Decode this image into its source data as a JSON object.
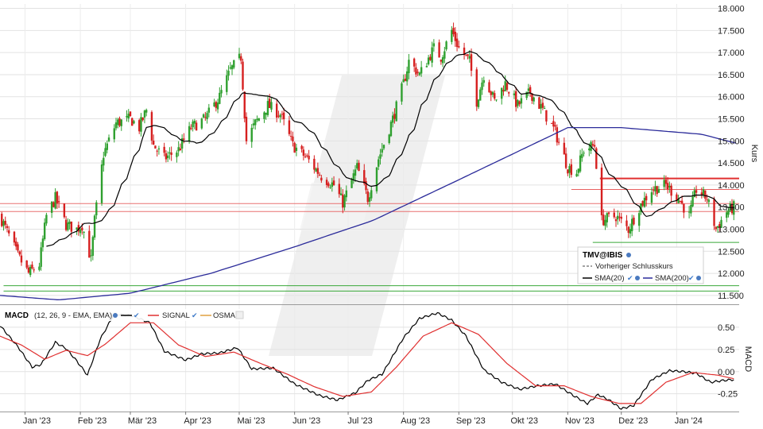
{
  "chart_data": [
    {
      "type": "candlestick",
      "instrument": "TMV@IBIS",
      "ylabel": "Kurs",
      "ylim": [
        11.3,
        18.1
      ],
      "y_ticks": [
        "18.000",
        "17.500",
        "17.000",
        "16.500",
        "16.000",
        "15.500",
        "15.000",
        "14.500",
        "14.000",
        "13.500",
        "13.000",
        "12.500",
        "12.000",
        "11.500"
      ],
      "y_tick_values": [
        18.0,
        17.5,
        17.0,
        16.5,
        16.0,
        15.5,
        15.0,
        14.5,
        14.0,
        13.5,
        13.0,
        12.5,
        12.0,
        11.5
      ],
      "x_ticks": [
        "Jan '23",
        "Feb '23",
        "Mär '23",
        "Apr '23",
        "Mai '23",
        "Jun '23",
        "Jul '23",
        "Aug '23",
        "Sep '23",
        "Okt '23",
        "Nov '23",
        "Dez '23",
        "Jan '24"
      ],
      "x_tick_dates": [
        "2023-01-01",
        "2023-02-01",
        "2023-03-01",
        "2023-04-01",
        "2023-05-01",
        "2023-06-01",
        "2023-07-01",
        "2023-08-01",
        "2023-09-01",
        "2023-10-01",
        "2023-11-01",
        "2023-12-01",
        "2024-01-01"
      ],
      "x_range": [
        "2022-12-18",
        "2024-02-05"
      ],
      "close_anchors": [
        [
          "2022-12-18",
          13.3
        ],
        [
          "2022-12-28",
          12.4
        ],
        [
          "2023-01-03",
          12.0
        ],
        [
          "2023-01-09",
          12.2
        ],
        [
          "2023-01-13",
          13.3
        ],
        [
          "2023-01-18",
          13.7
        ],
        [
          "2023-01-24",
          13.1
        ],
        [
          "2023-01-30",
          13.0
        ],
        [
          "2023-02-02",
          13.1
        ],
        [
          "2023-02-07",
          12.3
        ],
        [
          "2023-02-09",
          13.2
        ],
        [
          "2023-02-14",
          14.7
        ],
        [
          "2023-02-21",
          15.4
        ],
        [
          "2023-03-01",
          15.5
        ],
        [
          "2023-03-06",
          15.3
        ],
        [
          "2023-03-10",
          15.7
        ],
        [
          "2023-03-14",
          14.9
        ],
        [
          "2023-03-20",
          14.6
        ],
        [
          "2023-03-28",
          14.8
        ],
        [
          "2023-04-04",
          15.3
        ],
        [
          "2023-04-12",
          15.5
        ],
        [
          "2023-04-20",
          16.0
        ],
        [
          "2023-04-26",
          16.6
        ],
        [
          "2023-05-02",
          16.9
        ],
        [
          "2023-05-05",
          15.0
        ],
        [
          "2023-05-10",
          15.4
        ],
        [
          "2023-05-17",
          15.8
        ],
        [
          "2023-05-24",
          15.6
        ],
        [
          "2023-05-31",
          14.9
        ],
        [
          "2023-06-08",
          14.6
        ],
        [
          "2023-06-16",
          14.2
        ],
        [
          "2023-06-23",
          14.0
        ],
        [
          "2023-06-28",
          13.6
        ],
        [
          "2023-07-06",
          14.4
        ],
        [
          "2023-07-12",
          13.7
        ],
        [
          "2023-07-18",
          14.6
        ],
        [
          "2023-07-26",
          15.5
        ],
        [
          "2023-08-01",
          16.3
        ],
        [
          "2023-08-04",
          16.8
        ],
        [
          "2023-08-10",
          16.5
        ],
        [
          "2023-08-18",
          17.1
        ],
        [
          "2023-08-22",
          16.9
        ],
        [
          "2023-08-28",
          17.5
        ],
        [
          "2023-09-01",
          17.1
        ],
        [
          "2023-09-07",
          16.8
        ],
        [
          "2023-09-11",
          15.9
        ],
        [
          "2023-09-15",
          16.5
        ],
        [
          "2023-09-21",
          15.9
        ],
        [
          "2023-09-27",
          16.3
        ],
        [
          "2023-10-04",
          15.8
        ],
        [
          "2023-10-11",
          16.1
        ],
        [
          "2023-10-18",
          15.7
        ],
        [
          "2023-10-25",
          15.2
        ],
        [
          "2023-11-01",
          14.4
        ],
        [
          "2023-11-06",
          14.3
        ],
        [
          "2023-11-10",
          14.8
        ],
        [
          "2023-11-16",
          14.9
        ],
        [
          "2023-11-20",
          13.2
        ],
        [
          "2023-11-28",
          13.3
        ],
        [
          "2023-12-05",
          13.0
        ],
        [
          "2023-12-11",
          13.5
        ],
        [
          "2023-12-18",
          13.9
        ],
        [
          "2023-12-26",
          14.0
        ],
        [
          "2024-01-02",
          13.7
        ],
        [
          "2024-01-08",
          13.3
        ],
        [
          "2024-01-12",
          13.9
        ],
        [
          "2024-01-18",
          13.7
        ],
        [
          "2024-01-23",
          13.0
        ],
        [
          "2024-01-29",
          13.4
        ],
        [
          "2024-02-02",
          13.5
        ]
      ],
      "series": [
        {
          "name": "SMA(20)",
          "color": "#000000"
        },
        {
          "name": "SMA(200)",
          "color": "#2b2b9a",
          "values_by_date": [
            [
              "2022-12-18",
              11.5
            ],
            [
              "2023-01-20",
              11.4
            ],
            [
              "2023-03-01",
              11.55
            ],
            [
              "2023-04-15",
              12.0
            ],
            [
              "2023-06-01",
              12.6
            ],
            [
              "2023-07-15",
              13.2
            ],
            [
              "2023-08-31",
              14.1
            ],
            [
              "2023-10-01",
              14.7
            ],
            [
              "2023-11-01",
              15.3
            ],
            [
              "2023-12-01",
              15.3
            ],
            [
              "2024-01-15",
              15.15
            ],
            [
              "2024-02-03",
              14.95
            ]
          ]
        }
      ],
      "horizontal_lines": [
        {
          "value": 14.15,
          "color": "#e03030",
          "from": "2023-11-19",
          "to": "2024-02-05"
        },
        {
          "value": 13.9,
          "color": "#e86060",
          "from": "2023-11-03",
          "to": "2024-02-05"
        },
        {
          "value": 13.58,
          "color": "#e87070",
          "from": "2022-12-18",
          "to": "2024-02-05"
        },
        {
          "value": 13.4,
          "color": "#e87070",
          "from": "2022-12-18",
          "to": "2024-02-05"
        },
        {
          "value": 12.7,
          "color": "#39a839",
          "from": "2023-11-15",
          "to": "2024-02-05"
        },
        {
          "value": 11.72,
          "color": "#39a839",
          "from": "2022-12-20",
          "to": "2024-02-05"
        },
        {
          "value": 11.6,
          "color": "#39a839",
          "from": "2022-12-20",
          "to": "2024-02-05"
        }
      ],
      "legend": {
        "title": "TMV@IBIS",
        "entries": [
          {
            "label": "Vorheriger Schlusskurs",
            "style": "dashed"
          },
          {
            "label": "SMA(20)",
            "color": "#000000"
          },
          {
            "label": "SMA(200)",
            "color": "#2b2b9a"
          }
        ],
        "placement": "bottom-right"
      },
      "colors": {
        "up": "#2fa02f",
        "down": "#d62020"
      }
    },
    {
      "type": "line",
      "indicator": "MACD",
      "ylabel": "MACD",
      "ylim": [
        -0.45,
        0.75
      ],
      "y_ticks": [
        "0.50",
        "0.25",
        "0.00",
        "-0.25"
      ],
      "y_tick_values": [
        0.5,
        0.25,
        0.0,
        -0.25
      ],
      "legend": {
        "entries": [
          {
            "label": "MACD",
            "params": "(12, 26, 9 - EMA, EMA)",
            "color": "#000000"
          },
          {
            "label": "SIGNAL",
            "color": "#e03030"
          },
          {
            "label": "OSMA",
            "color": "#e0a040"
          }
        ],
        "placement": "top-left"
      },
      "series": [
        {
          "name": "MACD",
          "color": "#000000",
          "values_by_date": [
            [
              "2022-12-18",
              0.52
            ],
            [
              "2022-12-28",
              0.28
            ],
            [
              "2023-01-05",
              0.05
            ],
            [
              "2023-01-10",
              0.08
            ],
            [
              "2023-01-18",
              0.33
            ],
            [
              "2023-01-24",
              0.26
            ],
            [
              "2023-01-30",
              0.12
            ],
            [
              "2023-02-05",
              -0.04
            ],
            [
              "2023-02-12",
              0.36
            ],
            [
              "2023-02-20",
              0.65
            ],
            [
              "2023-03-02",
              0.63
            ],
            [
              "2023-03-12",
              0.55
            ],
            [
              "2023-03-20",
              0.23
            ],
            [
              "2023-04-01",
              0.13
            ],
            [
              "2023-04-10",
              0.2
            ],
            [
              "2023-04-20",
              0.21
            ],
            [
              "2023-04-30",
              0.27
            ],
            [
              "2023-05-08",
              0.03
            ],
            [
              "2023-05-20",
              0.04
            ],
            [
              "2023-06-01",
              -0.14
            ],
            [
              "2023-06-15",
              -0.27
            ],
            [
              "2023-06-25",
              -0.32
            ],
            [
              "2023-07-05",
              -0.24
            ],
            [
              "2023-07-12",
              -0.1
            ],
            [
              "2023-07-20",
              -0.03
            ],
            [
              "2023-08-01",
              0.38
            ],
            [
              "2023-08-10",
              0.6
            ],
            [
              "2023-08-20",
              0.66
            ],
            [
              "2023-08-28",
              0.58
            ],
            [
              "2023-09-05",
              0.4
            ],
            [
              "2023-09-15",
              0.02
            ],
            [
              "2023-09-25",
              -0.12
            ],
            [
              "2023-10-05",
              -0.2
            ],
            [
              "2023-10-15",
              -0.16
            ],
            [
              "2023-10-25",
              -0.14
            ],
            [
              "2023-11-05",
              -0.28
            ],
            [
              "2023-11-12",
              -0.36
            ],
            [
              "2023-11-18",
              -0.26
            ],
            [
              "2023-11-24",
              -0.32
            ],
            [
              "2023-12-01",
              -0.42
            ],
            [
              "2023-12-08",
              -0.38
            ],
            [
              "2023-12-18",
              -0.09
            ],
            [
              "2023-12-28",
              0.01
            ],
            [
              "2024-01-05",
              0.0
            ],
            [
              "2024-01-12",
              -0.02
            ],
            [
              "2024-01-20",
              -0.12
            ],
            [
              "2024-01-27",
              -0.1
            ],
            [
              "2024-02-02",
              -0.09
            ]
          ]
        },
        {
          "name": "SIGNAL",
          "color": "#e03030",
          "values_by_date": [
            [
              "2022-12-18",
              0.4
            ],
            [
              "2022-12-30",
              0.3
            ],
            [
              "2023-01-12",
              0.14
            ],
            [
              "2023-01-24",
              0.24
            ],
            [
              "2023-02-05",
              0.18
            ],
            [
              "2023-02-15",
              0.31
            ],
            [
              "2023-03-01",
              0.55
            ],
            [
              "2023-03-14",
              0.55
            ],
            [
              "2023-03-28",
              0.3
            ],
            [
              "2023-04-12",
              0.17
            ],
            [
              "2023-04-28",
              0.22
            ],
            [
              "2023-05-12",
              0.1
            ],
            [
              "2023-05-28",
              -0.03
            ],
            [
              "2023-06-12",
              -0.17
            ],
            [
              "2023-06-28",
              -0.28
            ],
            [
              "2023-07-14",
              -0.23
            ],
            [
              "2023-07-28",
              0.05
            ],
            [
              "2023-08-12",
              0.4
            ],
            [
              "2023-08-28",
              0.55
            ],
            [
              "2023-09-12",
              0.42
            ],
            [
              "2023-09-28",
              0.09
            ],
            [
              "2023-10-14",
              -0.16
            ],
            [
              "2023-10-30",
              -0.16
            ],
            [
              "2023-11-14",
              -0.28
            ],
            [
              "2023-11-30",
              -0.36
            ],
            [
              "2023-12-12",
              -0.36
            ],
            [
              "2023-12-26",
              -0.12
            ],
            [
              "2024-01-10",
              -0.01
            ],
            [
              "2024-01-24",
              -0.04
            ],
            [
              "2024-02-02",
              -0.08
            ]
          ]
        }
      ]
    }
  ],
  "legend_text": {
    "price_title": "TMV@IBIS",
    "prev_close": "Vorheriger Schlusskurs",
    "sma20": "SMA(20)",
    "sma200": "SMA(200)",
    "macd_name": "MACD",
    "macd_params": "(12, 26, 9 - EMA, EMA)",
    "signal": "SIGNAL",
    "osma": "OSMA"
  },
  "axis_labels": {
    "price": "Kurs",
    "macd": "MACD"
  }
}
